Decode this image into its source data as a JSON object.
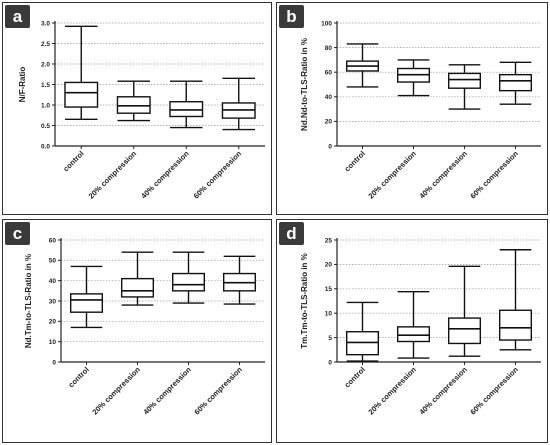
{
  "chart_data": [
    {
      "type": "boxplot",
      "panel_label": "a",
      "ylabel": "N/F-Ratio",
      "ylim": [
        0,
        3.0
      ],
      "yticks": [
        "0.0",
        "0.5",
        "1.0",
        "1.5",
        "2.0",
        "2.5",
        "3.0"
      ],
      "categories": [
        "control",
        "20% compression",
        "40% compression",
        "60% compression"
      ],
      "boxes": [
        {
          "min": 0.65,
          "q1": 0.95,
          "median": 1.3,
          "q3": 1.55,
          "max": 2.92
        },
        {
          "min": 0.62,
          "q1": 0.8,
          "median": 0.98,
          "q3": 1.2,
          "max": 1.58
        },
        {
          "min": 0.45,
          "q1": 0.72,
          "median": 0.88,
          "q3": 1.08,
          "max": 1.58
        },
        {
          "min": 0.4,
          "q1": 0.68,
          "median": 0.88,
          "q3": 1.05,
          "max": 1.65
        }
      ],
      "grid": true
    },
    {
      "type": "boxplot",
      "panel_label": "b",
      "ylabel": "Nd.Nd-to-TLS-Ratio in %",
      "ylim": [
        0,
        100
      ],
      "yticks": [
        "0",
        "20",
        "40",
        "60",
        "80",
        "100"
      ],
      "categories": [
        "control",
        "20% compression",
        "40% compression",
        "60% compression"
      ],
      "boxes": [
        {
          "min": 48,
          "q1": 61,
          "median": 65,
          "q3": 69,
          "max": 83
        },
        {
          "min": 41,
          "q1": 52,
          "median": 58,
          "q3": 63,
          "max": 70
        },
        {
          "min": 30,
          "q1": 47,
          "median": 54,
          "q3": 59,
          "max": 66
        },
        {
          "min": 34,
          "q1": 45,
          "median": 53,
          "q3": 58,
          "max": 68
        }
      ],
      "grid": true
    },
    {
      "type": "boxplot",
      "panel_label": "c",
      "ylabel": "Nd.Tm-to-TLS-Ratio in %",
      "ylim": [
        0,
        60
      ],
      "yticks": [
        "0",
        "10",
        "20",
        "30",
        "40",
        "50",
        "60"
      ],
      "categories": [
        "control",
        "20% compression",
        "40% compression",
        "60% compression"
      ],
      "boxes": [
        {
          "min": 17,
          "q1": 24.5,
          "median": 30.5,
          "q3": 33.5,
          "max": 47
        },
        {
          "min": 28,
          "q1": 32,
          "median": 35,
          "q3": 41,
          "max": 54
        },
        {
          "min": 29,
          "q1": 35,
          "median": 38,
          "q3": 43.5,
          "max": 54
        },
        {
          "min": 28.5,
          "q1": 35,
          "median": 39,
          "q3": 43.5,
          "max": 52
        }
      ],
      "grid": true
    },
    {
      "type": "boxplot",
      "panel_label": "d",
      "ylabel": "Tm.Tm-to-TLS-Ratio in %",
      "ylim": [
        0,
        25
      ],
      "yticks": [
        "0",
        "5",
        "10",
        "15",
        "20",
        "25"
      ],
      "categories": [
        "control",
        "20% compression",
        "40% compression",
        "60% compression"
      ],
      "boxes": [
        {
          "min": 0.2,
          "q1": 1.5,
          "median": 4,
          "q3": 6.2,
          "max": 12.2
        },
        {
          "min": 0.8,
          "q1": 4.2,
          "median": 5.5,
          "q3": 7.2,
          "max": 14.4
        },
        {
          "min": 1.2,
          "q1": 3.8,
          "median": 6.8,
          "q3": 9,
          "max": 19.6
        },
        {
          "min": 2.5,
          "q1": 4.5,
          "median": 7,
          "q3": 10.6,
          "max": 23
        }
      ],
      "grid": true
    }
  ]
}
